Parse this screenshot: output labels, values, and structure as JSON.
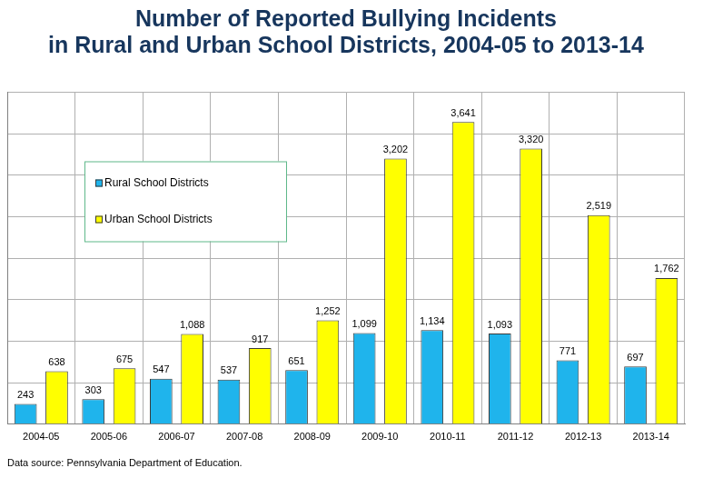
{
  "chart_data": {
    "type": "bar",
    "title": [
      "Number of Reported Bullying Incidents",
      "in Rural and Urban School Districts, 2004-05 to 2013-14"
    ],
    "annotations": [
      "Data source: Pennsylvania Department  of Education."
    ],
    "categories": [
      "2004-05",
      "2005-06",
      "2006-07",
      "2007-08",
      "2008-09",
      "2009-10",
      "2010-11",
      "2011-12",
      "2012-13",
      "2013-14"
    ],
    "series": [
      {
        "name": "Rural School Districts",
        "color": "#1fb4ec",
        "values": [
          243,
          303,
          547,
          537,
          651,
          1099,
          1134,
          1093,
          771,
          697
        ],
        "value_labels": [
          "243",
          "303",
          "547",
          "537",
          "651",
          "1,099",
          "1,134",
          "1,093",
          "771",
          "697"
        ]
      },
      {
        "name": "Urban School Districts",
        "color": "#ffff00",
        "values": [
          638,
          675,
          1088,
          917,
          1252,
          3202,
          3641,
          3320,
          2519,
          1762
        ],
        "value_labels": [
          "638",
          "675",
          "1,088",
          "917",
          "1,252",
          "3,202",
          "3,641",
          "3,320",
          "2,519",
          "1,762"
        ]
      }
    ],
    "ylim": [
      0,
      4000
    ],
    "yticks": [
      0,
      500,
      1000,
      1500,
      2000,
      2500,
      3000,
      3500,
      4000
    ],
    "grid": true,
    "legend": "upper left",
    "data_labels": true,
    "tick_labels": "x"
  }
}
